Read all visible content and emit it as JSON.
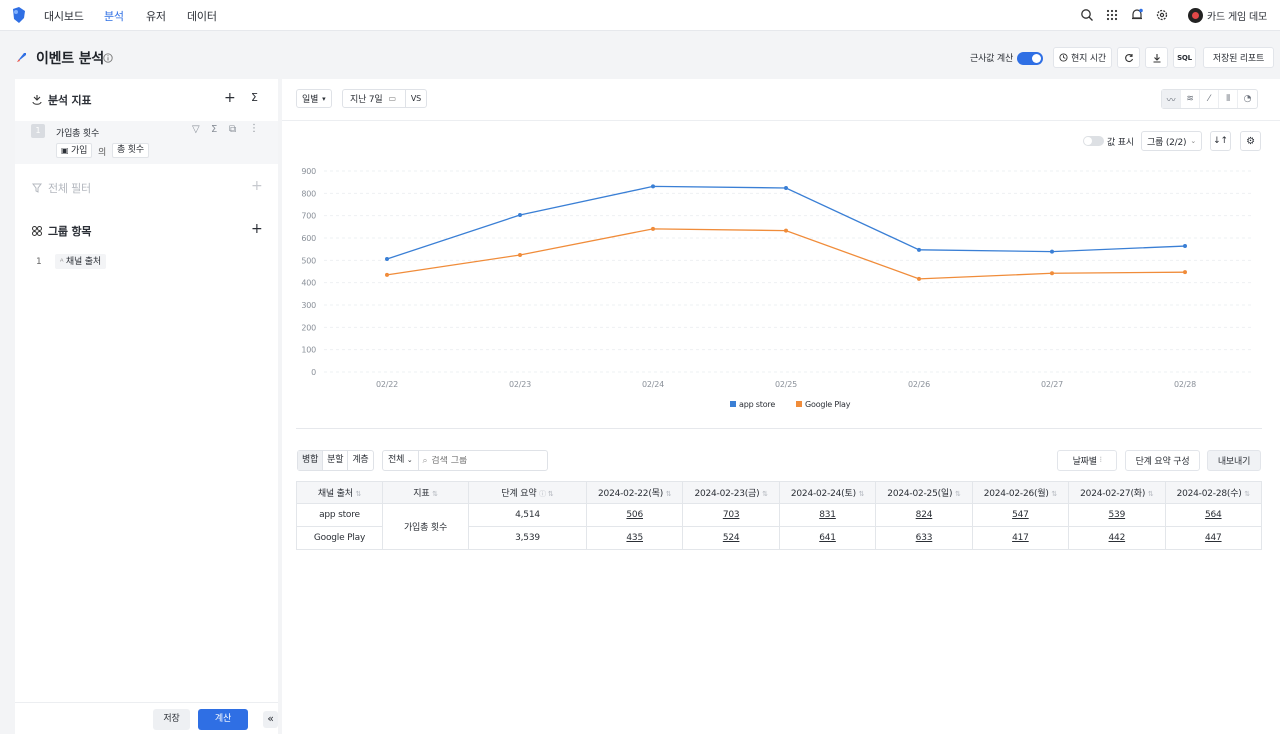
{
  "topnav": {
    "items": [
      "대시보드",
      "분석",
      "유저",
      "데이터"
    ],
    "active_index": 1,
    "user_name": "카드 게임 데모"
  },
  "page": {
    "title": "이벤트 분석",
    "approx_label": "근사값 계산",
    "approx_on": true,
    "local_time": "현지 시간",
    "sql": "SQL",
    "saved_reports": "저장된 리포트"
  },
  "left": {
    "metrics_title": "분석 지표",
    "metric": {
      "index": "1",
      "name": "가입총 횟수",
      "event": "가입",
      "of": "의",
      "measure": "총 횟수"
    },
    "filter_title": "전체 필터",
    "group_title": "그룹 항목",
    "group": {
      "index": "1",
      "name": "채널 출처"
    },
    "save": "저장",
    "calc": "계산"
  },
  "controls": {
    "granularity": "일별",
    "date_range": "지난 7일",
    "vs": "VS",
    "show_values": "값 표시",
    "group_select": "그룹 (2/2)"
  },
  "chart_data": {
    "type": "line",
    "x": [
      "02/22",
      "02/23",
      "02/24",
      "02/25",
      "02/26",
      "02/27",
      "02/28"
    ],
    "yticks": [
      "0",
      "100",
      "200",
      "300",
      "400",
      "500",
      "600",
      "700",
      "800",
      "900"
    ],
    "ylim": [
      0,
      900
    ],
    "grid": true,
    "legend": "bottom",
    "series": [
      {
        "name": "app store",
        "color": "#3a7fd5",
        "values": [
          506,
          703,
          831,
          824,
          547,
          539,
          564
        ]
      },
      {
        "name": "Google Play",
        "color": "#f08c3a",
        "values": [
          435,
          524,
          641,
          633,
          417,
          442,
          447
        ]
      }
    ]
  },
  "table_controls": {
    "tabs": [
      "병합",
      "분할",
      "계층"
    ],
    "filter": "전체",
    "search_placeholder": "검색 그룹",
    "by_date": "날짜별",
    "summary_config": "단계 요약 구성",
    "export": "내보내기"
  },
  "table": {
    "headers": [
      "채널 출처",
      "지표",
      "단계 요약",
      "2024-02-22(목)",
      "2024-02-23(금)",
      "2024-02-24(토)",
      "2024-02-25(일)",
      "2024-02-26(월)",
      "2024-02-27(화)",
      "2024-02-28(수)"
    ],
    "metric": "가입총 횟수",
    "rows": [
      {
        "channel": "app store",
        "summary": "4,514",
        "values": [
          "506",
          "703",
          "831",
          "824",
          "547",
          "539",
          "564"
        ]
      },
      {
        "channel": "Google Play",
        "summary": "3,539",
        "values": [
          "435",
          "524",
          "641",
          "633",
          "417",
          "442",
          "447"
        ]
      }
    ]
  }
}
